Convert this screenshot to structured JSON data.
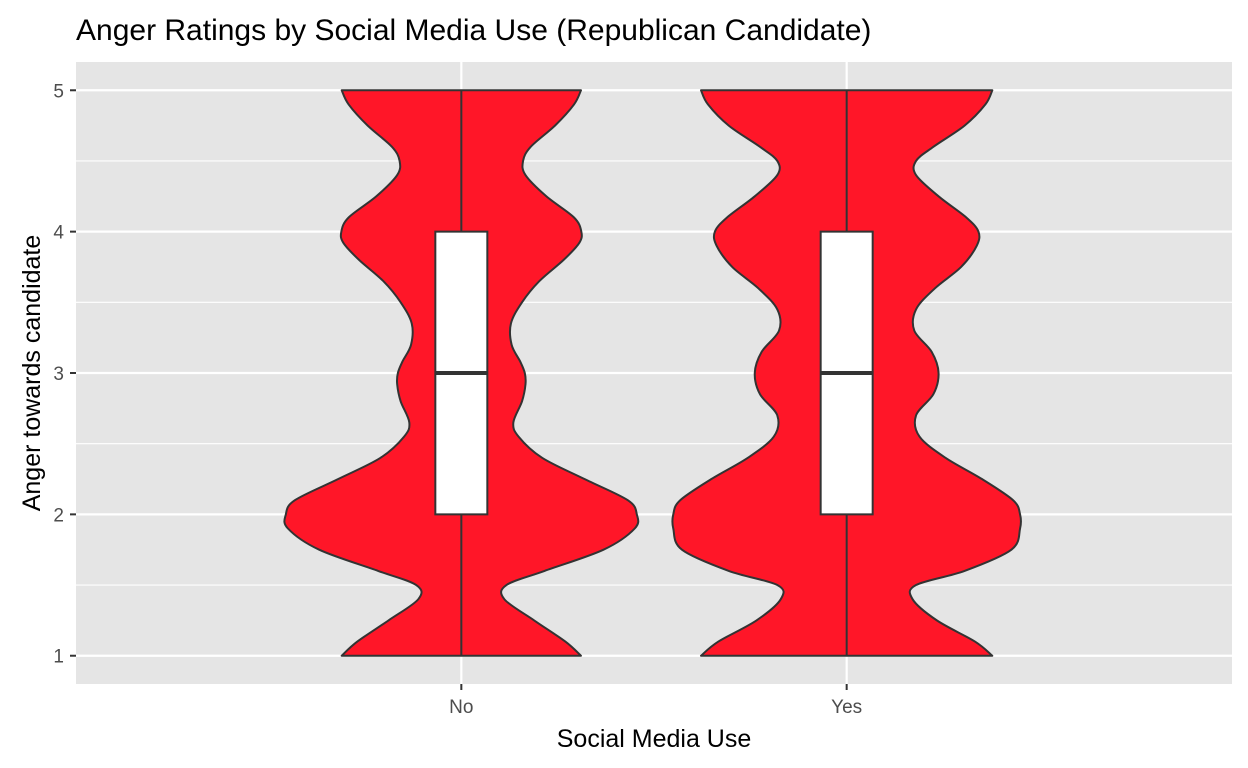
{
  "chart_data": {
    "type": "violin",
    "title": "Anger Ratings by Social Media Use (Republican Candidate)",
    "xlabel": "Social Media Use",
    "ylabel": "Anger towards candidate",
    "categories": [
      "No",
      "Yes"
    ],
    "y_ticks": [
      "1",
      "2",
      "3",
      "4",
      "5"
    ],
    "ylim": [
      0.8,
      5.2
    ],
    "grid": true,
    "legend": "none",
    "colors": {
      "panel": "#e5e5e5",
      "grid": "#ffffff",
      "violin_fill": "#ff1628",
      "outline": "#333333",
      "box_fill": "#ffffff"
    },
    "series": [
      {
        "category": "No",
        "density_y": [
          1.0,
          1.1,
          1.25,
          1.4,
          1.5,
          1.6,
          1.75,
          1.9,
          2.0,
          2.1,
          2.25,
          2.4,
          2.55,
          2.65,
          2.8,
          2.92,
          3.0,
          3.08,
          3.2,
          3.35,
          3.5,
          3.65,
          3.8,
          3.92,
          4.0,
          4.1,
          4.25,
          4.4,
          4.5,
          4.6,
          4.75,
          4.9,
          5.0
        ],
        "density_halfwidth": [
          0.345,
          0.3,
          0.21,
          0.124,
          0.13,
          0.24,
          0.41,
          0.5,
          0.506,
          0.48,
          0.355,
          0.233,
          0.165,
          0.15,
          0.175,
          0.185,
          0.183,
          0.17,
          0.145,
          0.143,
          0.175,
          0.225,
          0.295,
          0.34,
          0.346,
          0.325,
          0.245,
          0.185,
          0.178,
          0.2,
          0.27,
          0.325,
          0.345
        ],
        "box": {
          "q1": 2,
          "median": 3,
          "q3": 4,
          "whisker_low": 1,
          "whisker_high": 5
        }
      },
      {
        "category": "Yes",
        "density_y": [
          1.0,
          1.1,
          1.25,
          1.4,
          1.5,
          1.6,
          1.75,
          1.9,
          2.0,
          2.1,
          2.25,
          2.4,
          2.55,
          2.7,
          2.85,
          3.0,
          3.15,
          3.3,
          3.45,
          3.6,
          3.75,
          3.9,
          4.0,
          4.1,
          4.25,
          4.4,
          4.5,
          4.6,
          4.75,
          4.9,
          5.0
        ],
        "density_halfwidth": [
          0.42,
          0.37,
          0.26,
          0.19,
          0.2,
          0.34,
          0.475,
          0.5,
          0.5,
          0.48,
          0.39,
          0.285,
          0.21,
          0.2,
          0.25,
          0.265,
          0.245,
          0.195,
          0.2,
          0.255,
          0.33,
          0.375,
          0.38,
          0.345,
          0.265,
          0.2,
          0.2,
          0.25,
          0.34,
          0.4,
          0.42
        ],
        "box": {
          "q1": 2,
          "median": 3,
          "q3": 4,
          "whisker_low": 1,
          "whisker_high": 5
        }
      }
    ]
  }
}
